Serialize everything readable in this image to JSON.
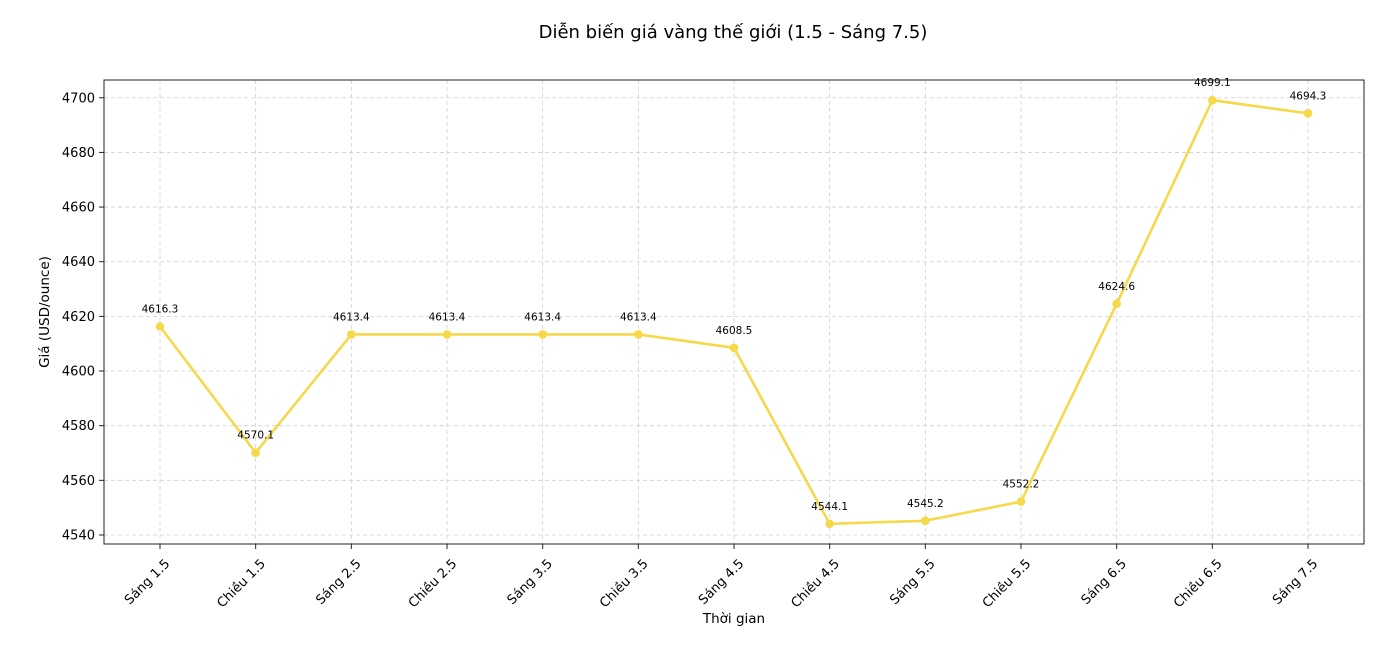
{
  "chart_data": {
    "type": "line",
    "title": "Diễn biến giá vàng thế giới (1.5 - Sáng 7.5)",
    "xlabel": "Thời gian",
    "ylabel": "Giá (USD/ounce)",
    "categories": [
      "Sáng 1.5",
      "Chiều 1.5",
      "Sáng 2.5",
      "Chiều 2.5",
      "Sáng 3.5",
      "Chiều 3.5",
      "Sáng 4.5",
      "Chiều 4.5",
      "Sáng 5.5",
      "Chiều 5.5",
      "Sáng 6.5",
      "Chiều 6.5",
      "Sáng 7.5"
    ],
    "series": [
      {
        "values": [
          4616.3,
          4570.1,
          4613.4,
          4613.4,
          4613.4,
          4613.4,
          4608.5,
          4544.1,
          4545.2,
          4552.2,
          4624.6,
          4699.1,
          4694.3
        ],
        "color": "#f5d94a"
      }
    ],
    "data_labels": [
      "4616.3",
      "4570.1",
      "4613.4",
      "4613.4",
      "4613.4",
      "4613.4",
      "4608.5",
      "4544.1",
      "4545.2",
      "4552.2",
      "4624.6",
      "4699.1",
      "4694.3"
    ],
    "yticks": [
      4540,
      4560,
      4580,
      4600,
      4620,
      4640,
      4660,
      4680,
      4700
    ],
    "ylim": [
      4536.7,
      4706.5
    ],
    "grid": true,
    "legend": "none"
  }
}
